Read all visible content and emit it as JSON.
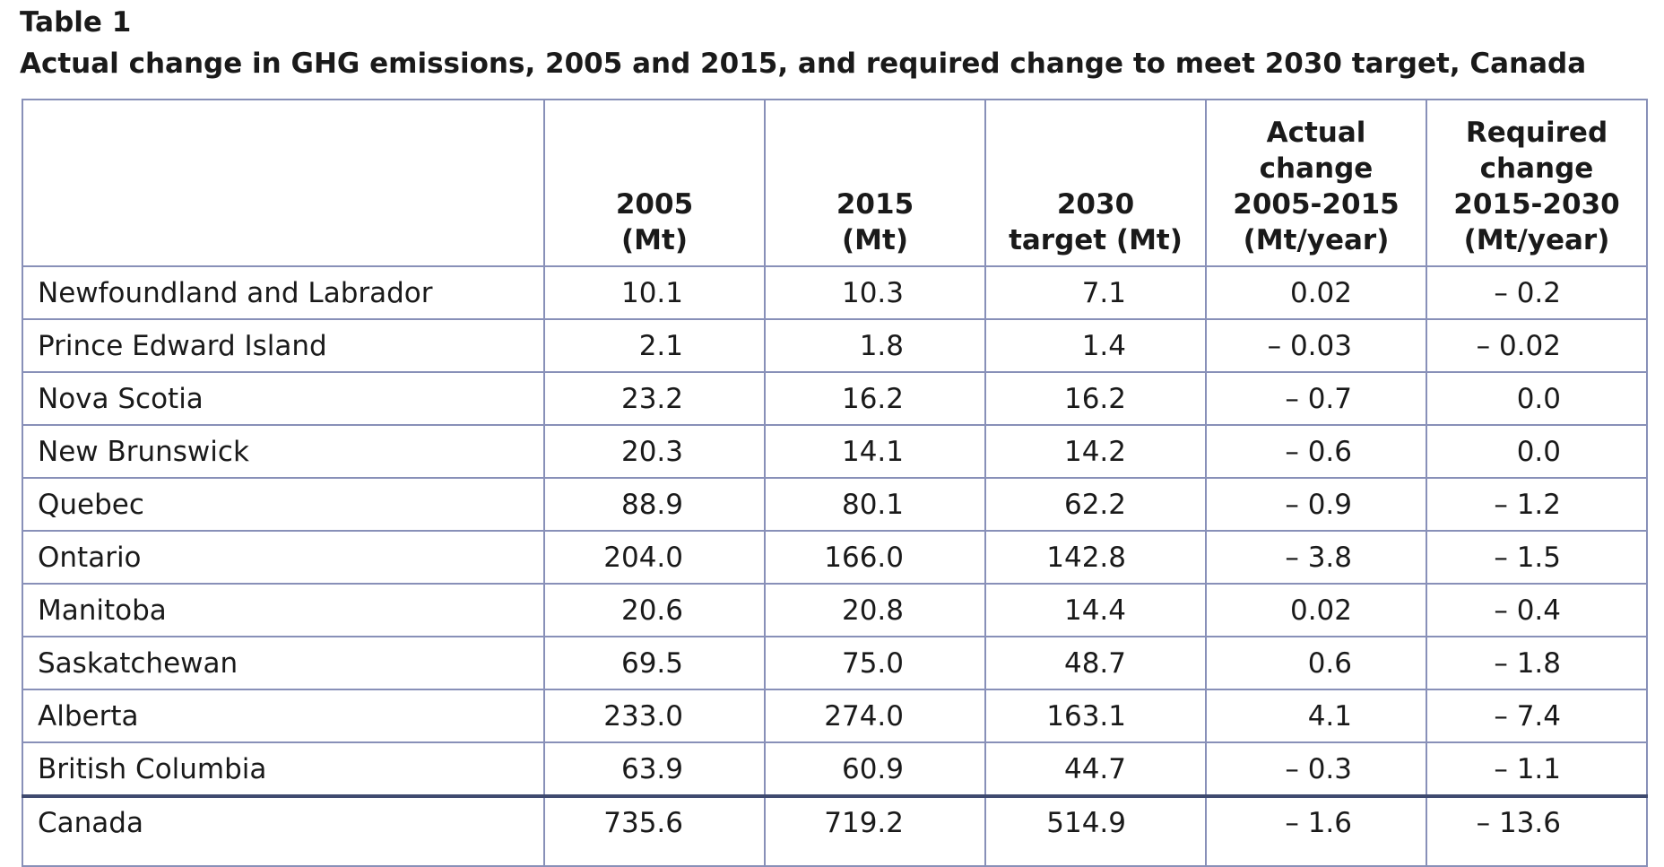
{
  "table_label": "Table 1",
  "title": "Actual change in GHG emissions, 2005 and 2015, and required change to meet 2030 target, Canada",
  "chart_data": {
    "type": "table",
    "title": "Actual change in GHG emissions, 2005 and 2015, and required change to meet 2030 target, Canada",
    "columns": [
      "",
      "2005 (Mt)",
      "2015 (Mt)",
      "2030 target (Mt)",
      "Actual change 2005-2015 (Mt/year)",
      "Required change 2015-2030 (Mt/year)"
    ],
    "rows": [
      {
        "region": "Newfoundland and Labrador",
        "y2005": "10.1",
        "y2015": "10.3",
        "target2030": "7.1",
        "actual_change": "0.02",
        "required_change": "– 0.2"
      },
      {
        "region": "Prince Edward Island",
        "y2005": "2.1",
        "y2015": "1.8",
        "target2030": "1.4",
        "actual_change": "– 0.03",
        "required_change": "– 0.02"
      },
      {
        "region": "Nova Scotia",
        "y2005": "23.2",
        "y2015": "16.2",
        "target2030": "16.2",
        "actual_change": "– 0.7",
        "required_change": "0.0"
      },
      {
        "region": "New Brunswick",
        "y2005": "20.3",
        "y2015": "14.1",
        "target2030": "14.2",
        "actual_change": "– 0.6",
        "required_change": "0.0"
      },
      {
        "region": "Quebec",
        "y2005": "88.9",
        "y2015": "80.1",
        "target2030": "62.2",
        "actual_change": "– 0.9",
        "required_change": "– 1.2"
      },
      {
        "region": "Ontario",
        "y2005": "204.0",
        "y2015": "166.0",
        "target2030": "142.8",
        "actual_change": "– 3.8",
        "required_change": "– 1.5"
      },
      {
        "region": "Manitoba",
        "y2005": "20.6",
        "y2015": "20.8",
        "target2030": "14.4",
        "actual_change": "0.02",
        "required_change": "– 0.4"
      },
      {
        "region": "Saskatchewan",
        "y2005": "69.5",
        "y2015": "75.0",
        "target2030": "48.7",
        "actual_change": "0.6",
        "required_change": "– 1.8"
      },
      {
        "region": "Alberta",
        "y2005": "233.0",
        "y2015": "274.0",
        "target2030": "163.1",
        "actual_change": "4.1",
        "required_change": "– 7.4"
      },
      {
        "region": "British Columbia",
        "y2005": "63.9",
        "y2015": "60.9",
        "target2030": "44.7",
        "actual_change": "– 0.3",
        "required_change": "– 1.1"
      }
    ],
    "total": {
      "region": "Canada",
      "y2005": "735.6",
      "y2015": "719.2",
      "target2030": "514.9",
      "actual_change": "– 1.6",
      "required_change": "– 13.6"
    }
  },
  "header": {
    "col1": [
      "2005",
      "(Mt)"
    ],
    "col2": [
      "2015",
      "(Mt)"
    ],
    "col3": [
      "2030",
      "target (Mt)"
    ],
    "col4": [
      "Actual",
      "change",
      "2005-2015",
      "(Mt/year)"
    ],
    "col5": [
      "Required",
      "change",
      "2015-2030",
      "(Mt/year)"
    ]
  }
}
